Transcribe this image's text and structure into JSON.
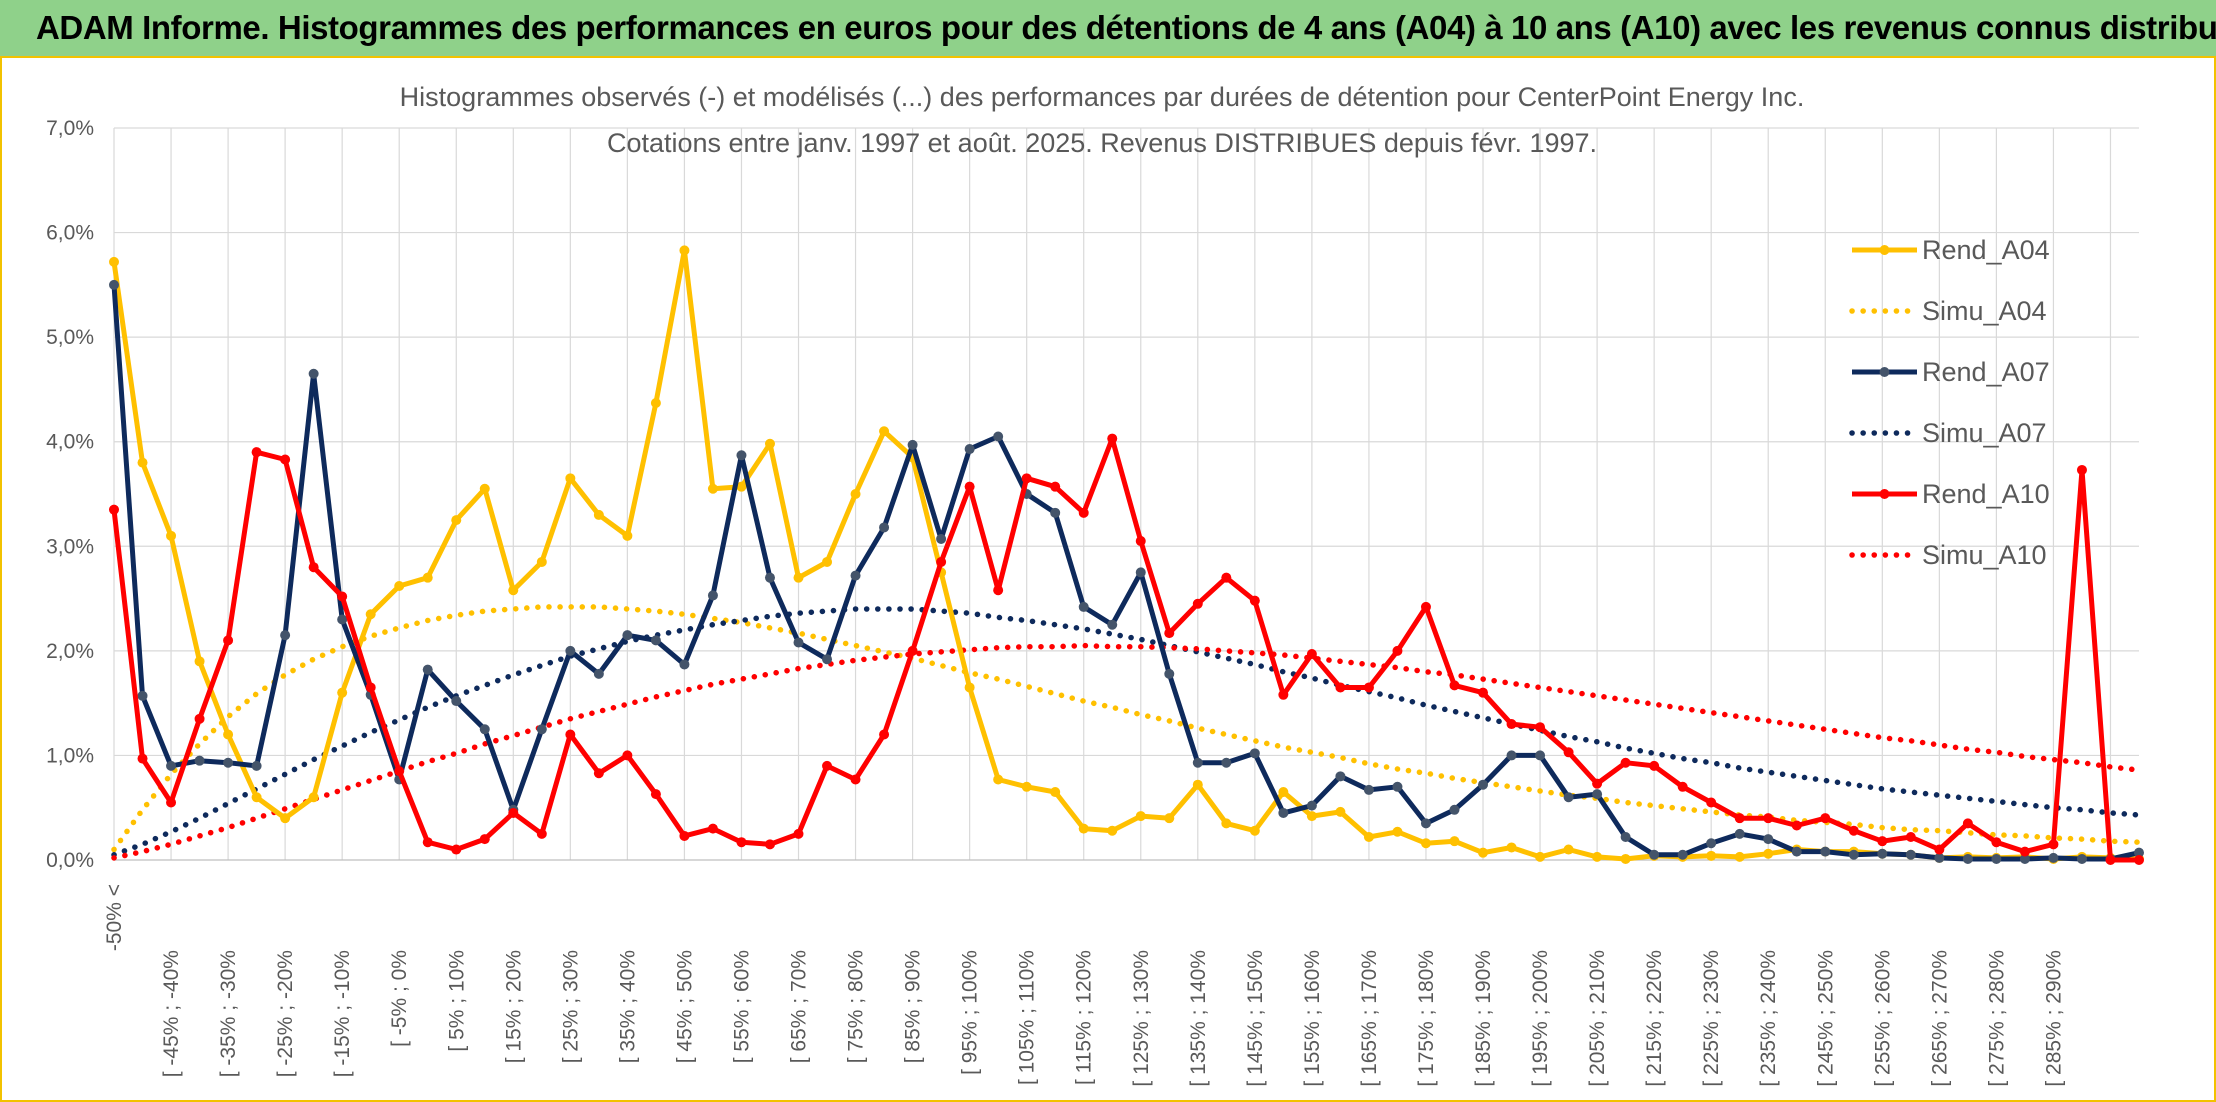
{
  "banner": {
    "title": "ADAM Informe. Histogrammes des performances en euros pour des détentions de 4 ans (A04) à 10 ans (A10) avec les revenus connus distribués"
  },
  "chart_data": {
    "type": "line",
    "title_lines": [
      "Histogrammes observés (-) et modélisés (...) des performances par durées de détention pour CenterPoint Energy Inc.",
      "Cotations entre janv. 1997 et août. 2025. Revenus DISTRIBUES depuis févr. 1997."
    ],
    "xlabel": "",
    "ylabel": "",
    "ylim": [
      0,
      0.07
    ],
    "y_ticks": [
      "0,0%",
      "1,0%",
      "2,0%",
      "3,0%",
      "4,0%",
      "5,0%",
      "6,0%",
      "7,0%"
    ],
    "grid": true,
    "legend_position": "right",
    "x_tick_labels": [
      "-50% <",
      "[ -45% ; -40%",
      "[ -35% ; -30%",
      "[ -25% ; -20%",
      "[ -15% ; -10%",
      "[ -5% ; 0%",
      "[ 5% ; 10%",
      "[ 15% ; 20%",
      "[ 25% ; 30%",
      "[ 35% ; 40%",
      "[ 45% ; 50%",
      "[ 55% ; 60%",
      "[ 65% ; 70%",
      "[ 75% ; 80%",
      "[ 85% ; 90%",
      "[ 95% ; 100%",
      "[ 105% ; 110%",
      "[ 115% ; 120%",
      "[ 125% ; 130%",
      "[ 135% ; 140%",
      "[ 145% ; 150%",
      "[ 155% ; 160%",
      "[ 165% ; 170%",
      "[ 175% ; 180%",
      "[ 185% ; 190%",
      "[ 195% ; 200%",
      "[ 205% ; 210%",
      "[ 215% ; 220%",
      "[ 225% ; 230%",
      "[ 235% ; 240%",
      "[ 245% ; 250%",
      "[ 255% ; 260%",
      "[ 265% ; 270%",
      "[ 275% ; 280%",
      "[ 285% ; 290%"
    ],
    "series": [
      {
        "name": "Rend_A04",
        "style": "solid",
        "color": "#ffc000",
        "values": [
          0.0572,
          0.038,
          0.031,
          0.019,
          0.012,
          0.006,
          0.004,
          0.006,
          0.016,
          0.0235,
          0.0262,
          0.027,
          0.0325,
          0.0355,
          0.0258,
          0.0285,
          0.0365,
          0.033,
          0.031,
          0.0437,
          0.0583,
          0.0355,
          0.0357,
          0.0398,
          0.027,
          0.0285,
          0.035,
          0.041,
          0.0385,
          0.0275,
          0.0165,
          0.0077,
          0.007,
          0.0065,
          0.003,
          0.0028,
          0.0042,
          0.004,
          0.0072,
          0.0035,
          0.0028,
          0.0065,
          0.0042,
          0.0046,
          0.0022,
          0.0027,
          0.0016,
          0.0018,
          0.0007,
          0.0012,
          0.0003,
          0.001,
          0.0003,
          0.0001,
          0.0004,
          0.0003,
          0.0004,
          0.0003,
          0.0006,
          0.001,
          0.0008,
          0.0008,
          0.0006,
          0.0005,
          0.0002,
          0.0003,
          0.0002,
          0.0003,
          0.0001,
          0.0003,
          0.0002,
          0.0001
        ]
      },
      {
        "name": "Simu_A04",
        "style": "dotted",
        "color": "#ffc000",
        "values": [
          0.001,
          0.0048,
          0.0082,
          0.0111,
          0.0137,
          0.0159,
          0.0177,
          0.0192,
          0.0204,
          0.0214,
          0.0222,
          0.0229,
          0.0234,
          0.0238,
          0.024,
          0.0242,
          0.0242,
          0.0242,
          0.024,
          0.0238,
          0.0235,
          0.0231,
          0.0227,
          0.0222,
          0.0217,
          0.0211,
          0.0205,
          0.0199,
          0.0193,
          0.0186,
          0.0179,
          0.0173,
          0.0166,
          0.0159,
          0.0152,
          0.0146,
          0.0139,
          0.0133,
          0.0126,
          0.012,
          0.0114,
          0.0108,
          0.0103,
          0.0098,
          0.0092,
          0.0087,
          0.0083,
          0.0078,
          0.0074,
          0.007,
          0.0066,
          0.0062,
          0.0059,
          0.0055,
          0.0052,
          0.0049,
          0.0046,
          0.0043,
          0.0041,
          0.0038,
          0.0036,
          0.0034,
          0.0031,
          0.0029,
          0.0028,
          0.0026,
          0.0024,
          0.0023,
          0.0021,
          0.002,
          0.0018,
          0.0017
        ]
      },
      {
        "name": "Rend_A07",
        "style": "solid",
        "color": "#0e2a5c",
        "values": [
          0.055,
          0.0157,
          0.009,
          0.0095,
          0.0093,
          0.009,
          0.0215,
          0.0465,
          0.023,
          0.0158,
          0.0077,
          0.0182,
          0.0152,
          0.0125,
          0.0048,
          0.0125,
          0.02,
          0.0178,
          0.0215,
          0.021,
          0.0187,
          0.0253,
          0.0387,
          0.027,
          0.0208,
          0.0192,
          0.0272,
          0.0318,
          0.0397,
          0.0307,
          0.0393,
          0.0405,
          0.035,
          0.0332,
          0.0242,
          0.0225,
          0.0275,
          0.0178,
          0.0093,
          0.0093,
          0.0102,
          0.0045,
          0.0052,
          0.008,
          0.0067,
          0.007,
          0.0035,
          0.0048,
          0.0072,
          0.01,
          0.01,
          0.006,
          0.0063,
          0.0022,
          0.0005,
          0.0005,
          0.0016,
          0.0025,
          0.002,
          0.0008,
          0.0008,
          0.0005,
          0.0006,
          0.0005,
          0.0002,
          0.0001,
          0.0001,
          0.0001,
          0.0002,
          0.0001,
          0.0001,
          0.0007
        ]
      },
      {
        "name": "Simu_A07",
        "style": "dotted",
        "color": "#0e2a5c",
        "values": [
          0.0005,
          0.0015,
          0.0027,
          0.004,
          0.0054,
          0.0068,
          0.0082,
          0.0096,
          0.0109,
          0.0122,
          0.0134,
          0.0146,
          0.0157,
          0.0167,
          0.0177,
          0.0186,
          0.0195,
          0.0202,
          0.0209,
          0.0215,
          0.022,
          0.0225,
          0.0229,
          0.0233,
          0.0236,
          0.0238,
          0.024,
          0.024,
          0.024,
          0.0238,
          0.0236,
          0.0232,
          0.0229,
          0.0225,
          0.0221,
          0.0216,
          0.0211,
          0.0205,
          0.0199,
          0.0193,
          0.0187,
          0.018,
          0.0174,
          0.0167,
          0.0161,
          0.0155,
          0.0148,
          0.0142,
          0.0136,
          0.013,
          0.0124,
          0.0118,
          0.0113,
          0.0107,
          0.0102,
          0.0097,
          0.0093,
          0.0088,
          0.0084,
          0.008,
          0.0076,
          0.0072,
          0.0068,
          0.0065,
          0.0062,
          0.0059,
          0.0056,
          0.0053,
          0.005,
          0.0048,
          0.0045,
          0.0043
        ]
      },
      {
        "name": "Rend_A10",
        "style": "solid",
        "color": "#ff0000",
        "values": [
          0.0335,
          0.0097,
          0.0055,
          0.0135,
          0.021,
          0.039,
          0.0383,
          0.028,
          0.0252,
          0.0165,
          0.0085,
          0.0017,
          0.001,
          0.002,
          0.0045,
          0.0025,
          0.012,
          0.0083,
          0.01,
          0.0063,
          0.0023,
          0.003,
          0.0017,
          0.0015,
          0.0025,
          0.009,
          0.0077,
          0.012,
          0.02,
          0.0285,
          0.0357,
          0.0258,
          0.0365,
          0.0357,
          0.0332,
          0.0403,
          0.0305,
          0.0217,
          0.0245,
          0.027,
          0.0248,
          0.0158,
          0.0197,
          0.0165,
          0.0165,
          0.02,
          0.0242,
          0.0167,
          0.016,
          0.013,
          0.0127,
          0.0103,
          0.0073,
          0.0093,
          0.009,
          0.007,
          0.0055,
          0.004,
          0.004,
          0.0033,
          0.004,
          0.0028,
          0.0018,
          0.0022,
          0.001,
          0.0035,
          0.0017,
          0.0008,
          0.0015,
          0.0373,
          0.0,
          0.0
        ]
      },
      {
        "name": "Simu_A10",
        "style": "dotted",
        "color": "#ff0000",
        "values": [
          0.0002,
          0.0008,
          0.0015,
          0.0023,
          0.0031,
          0.004,
          0.0049,
          0.0058,
          0.0067,
          0.0076,
          0.0085,
          0.0094,
          0.0102,
          0.0111,
          0.0119,
          0.0127,
          0.0135,
          0.0142,
          0.0149,
          0.0156,
          0.0162,
          0.0168,
          0.0173,
          0.0178,
          0.0183,
          0.0187,
          0.0191,
          0.0194,
          0.0197,
          0.0199,
          0.0201,
          0.0203,
          0.0204,
          0.0204,
          0.0205,
          0.0204,
          0.0204,
          0.0203,
          0.0202,
          0.02,
          0.0198,
          0.0196,
          0.0193,
          0.019,
          0.0187,
          0.0184,
          0.018,
          0.0177,
          0.0173,
          0.0169,
          0.0165,
          0.0161,
          0.0157,
          0.0153,
          0.0149,
          0.0145,
          0.0141,
          0.0137,
          0.0133,
          0.0129,
          0.0125,
          0.0121,
          0.0117,
          0.0114,
          0.011,
          0.0106,
          0.0103,
          0.0099,
          0.0096,
          0.0093,
          0.0089,
          0.0086
        ]
      }
    ]
  }
}
